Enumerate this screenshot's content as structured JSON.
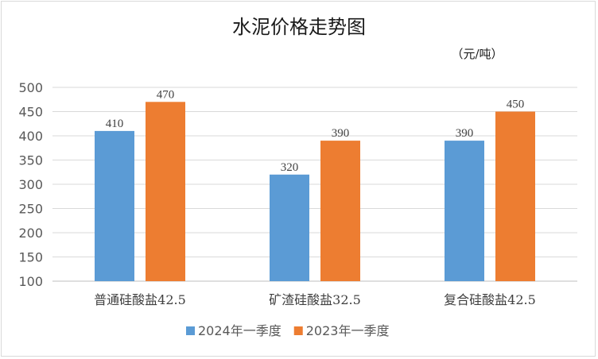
{
  "chart_data": {
    "type": "bar",
    "title": "水泥价格走势图",
    "unit_label": "（元/吨）",
    "categories": [
      "普通硅酸盐42.5",
      "矿渣硅酸盐32.5",
      "复合硅酸盐42.5"
    ],
    "series": [
      {
        "name": "2024年一季度",
        "values": [
          410,
          320,
          390
        ],
        "color": "#5b9bd5"
      },
      {
        "name": "2023年一季度",
        "values": [
          470,
          390,
          450
        ],
        "color": "#ed7d31"
      }
    ],
    "ylim": [
      100,
      500
    ],
    "ytick_step": 50,
    "grid": true,
    "legend_position": "bottom"
  }
}
